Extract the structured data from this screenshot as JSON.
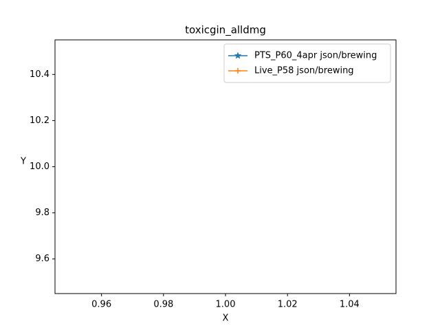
{
  "chart_data": {
    "type": "line",
    "title": "toxicgin_alldmg",
    "x_label": "X",
    "y_label": "Y",
    "x": [],
    "series": [
      {
        "name": "PTS_P60_4apr json/brewing",
        "color": "#1f77b4",
        "marker": "star",
        "values": []
      },
      {
        "name": "Live_P58 json/brewing",
        "color": "#ff7f0e",
        "marker": "plus",
        "values": []
      }
    ],
    "xlim": [
      0.945,
      1.055
    ],
    "xticks": [
      0.96,
      0.98,
      {
        "value": 1,
        "label": "1.00"
      },
      1.02,
      1.04
    ],
    "ylim": [
      9.45,
      10.55
    ],
    "yticks": [
      9.6,
      9.8,
      {
        "value": 10,
        "label": "10.0"
      },
      10.2,
      10.4
    ],
    "grid": false,
    "legend": "upper right"
  }
}
